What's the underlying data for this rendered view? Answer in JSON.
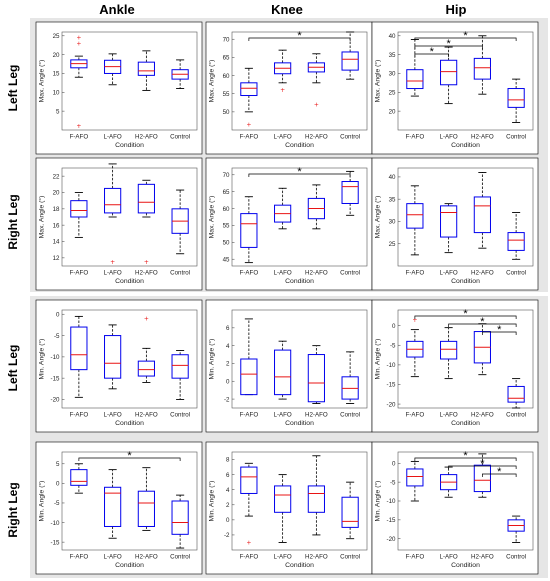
{
  "column_titles": [
    "Ankle",
    "Knee",
    "Hip"
  ],
  "row_titles": [
    "Left Leg",
    "Right Leg",
    "Left Leg",
    "Right Leg"
  ],
  "colors": {
    "box": "#0000ee",
    "median": "#e81414",
    "whisker": "#000000",
    "outlier": "#e81414",
    "section_background": "#e6e6e6"
  },
  "chart_data": [
    {
      "type": "box",
      "id": "max-left-ankle",
      "title": "",
      "xlabel": "Condition",
      "ylabel": "Max. Angle (°)",
      "categories": [
        "F-AFO",
        "L-AFO",
        "H2-AFO",
        "Control"
      ],
      "ylim": [
        0,
        26
      ],
      "yticks": [
        5,
        10,
        15,
        20,
        25
      ],
      "boxes": [
        {
          "min": 14,
          "q1": 16.5,
          "median": 17.6,
          "q3": 18.6,
          "max": 19.6,
          "outliers": [
            24.5,
            23,
            1
          ]
        },
        {
          "min": 12,
          "q1": 15,
          "median": 16.8,
          "q3": 18.5,
          "max": 20.2,
          "outliers": []
        },
        {
          "min": 10.5,
          "q1": 14.5,
          "median": 15.7,
          "q3": 18,
          "max": 21,
          "outliers": []
        },
        {
          "min": 11,
          "q1": 13.5,
          "median": 14.8,
          "q3": 16,
          "max": 18.6,
          "outliers": []
        }
      ],
      "significance": []
    },
    {
      "type": "box",
      "id": "max-left-knee",
      "title": "",
      "xlabel": "Condition",
      "ylabel": "Max. Angle (°)",
      "categories": [
        "F-AFO",
        "L-AFO",
        "H2-AFO",
        "Control"
      ],
      "ylim": [
        45,
        72
      ],
      "yticks": [
        50,
        55,
        60,
        65,
        70
      ],
      "boxes": [
        {
          "min": 50,
          "q1": 54.5,
          "median": 56.5,
          "q3": 58,
          "max": 62,
          "outliers": [
            46.5
          ]
        },
        {
          "min": 58,
          "q1": 60.5,
          "median": 62,
          "q3": 63.5,
          "max": 67,
          "outliers": [
            56
          ]
        },
        {
          "min": 58,
          "q1": 61,
          "median": 62.3,
          "q3": 63.5,
          "max": 66,
          "outliers": [
            52
          ]
        },
        {
          "min": 59,
          "q1": 61.5,
          "median": 64.5,
          "q3": 66.5,
          "max": 72,
          "outliers": []
        }
      ],
      "significance": [
        {
          "from": 0,
          "to": 3,
          "label": "*"
        }
      ]
    },
    {
      "type": "box",
      "id": "max-left-hip",
      "title": "",
      "xlabel": "Condition",
      "ylabel": "Max. Angle (°)",
      "categories": [
        "F-AFO",
        "L-AFO",
        "H2-AFO",
        "Control"
      ],
      "ylim": [
        15,
        41
      ],
      "yticks": [
        20,
        25,
        30,
        35,
        40
      ],
      "boxes": [
        {
          "min": 24,
          "q1": 26,
          "median": 28,
          "q3": 31,
          "max": 39,
          "outliers": []
        },
        {
          "min": 22,
          "q1": 27,
          "median": 30.5,
          "q3": 33.5,
          "max": 37,
          "outliers": []
        },
        {
          "min": 24.5,
          "q1": 28.5,
          "median": 31.5,
          "q3": 34,
          "max": 40,
          "outliers": []
        },
        {
          "min": 17,
          "q1": 21,
          "median": 23,
          "q3": 26,
          "max": 28.5,
          "outliers": []
        }
      ],
      "significance": [
        {
          "from": 0,
          "to": 3,
          "label": "*"
        },
        {
          "from": 0,
          "to": 2,
          "label": "*"
        },
        {
          "from": 0,
          "to": 1,
          "label": "*"
        }
      ]
    },
    {
      "type": "box",
      "id": "max-right-ankle",
      "title": "",
      "xlabel": "Condition",
      "ylabel": "Max. Angle (°)",
      "categories": [
        "F-AFO",
        "L-AFO",
        "H2-AFO",
        "Control"
      ],
      "ylim": [
        11,
        23
      ],
      "yticks": [
        12,
        14,
        16,
        18,
        20,
        22
      ],
      "boxes": [
        {
          "min": 14.5,
          "q1": 17,
          "median": 17.8,
          "q3": 19,
          "max": 20,
          "outliers": []
        },
        {
          "min": 17,
          "q1": 17.5,
          "median": 18.5,
          "q3": 20.5,
          "max": 23.5,
          "outliers": [
            11.5
          ]
        },
        {
          "min": 17,
          "q1": 17.5,
          "median": 18.8,
          "q3": 21,
          "max": 21.5,
          "outliers": [
            11.5
          ]
        },
        {
          "min": 12.5,
          "q1": 15,
          "median": 16.5,
          "q3": 18,
          "max": 20.3,
          "outliers": []
        }
      ],
      "significance": []
    },
    {
      "type": "box",
      "id": "max-right-knee",
      "title": "",
      "xlabel": "Condition",
      "ylabel": "Max. Angle (°)",
      "categories": [
        "F-AFO",
        "L-AFO",
        "H2-AFO",
        "Control"
      ],
      "ylim": [
        43,
        72
      ],
      "yticks": [
        45,
        50,
        55,
        60,
        65,
        70
      ],
      "boxes": [
        {
          "min": 44,
          "q1": 48.5,
          "median": 55.5,
          "q3": 58.5,
          "max": 63.5,
          "outliers": []
        },
        {
          "min": 54,
          "q1": 56,
          "median": 58.5,
          "q3": 61,
          "max": 66,
          "outliers": []
        },
        {
          "min": 54,
          "q1": 57,
          "median": 60,
          "q3": 63,
          "max": 67,
          "outliers": []
        },
        {
          "min": 58,
          "q1": 61.5,
          "median": 66.5,
          "q3": 68,
          "max": 71,
          "outliers": []
        }
      ],
      "significance": [
        {
          "from": 0,
          "to": 3,
          "label": "*"
        }
      ]
    },
    {
      "type": "box",
      "id": "max-right-hip",
      "title": "",
      "xlabel": "Condition",
      "ylabel": "Max. Angle (°)",
      "categories": [
        "F-AFO",
        "L-AFO",
        "H2-AFO",
        "Control"
      ],
      "ylim": [
        20,
        42
      ],
      "yticks": [
        25,
        30,
        35,
        40
      ],
      "boxes": [
        {
          "min": 22.5,
          "q1": 28.5,
          "median": 31.5,
          "q3": 34,
          "max": 38,
          "outliers": []
        },
        {
          "min": 23,
          "q1": 26.5,
          "median": 32,
          "q3": 33.5,
          "max": 34,
          "outliers": []
        },
        {
          "min": 24,
          "q1": 27.5,
          "median": 33.5,
          "q3": 35.5,
          "max": 41,
          "outliers": []
        },
        {
          "min": 21.5,
          "q1": 23.5,
          "median": 25.8,
          "q3": 27.5,
          "max": 32,
          "outliers": []
        }
      ],
      "significance": []
    },
    {
      "type": "box",
      "id": "min-left-ankle",
      "title": "",
      "xlabel": "Condition",
      "ylabel": "Min. Angle (°)",
      "categories": [
        "F-AFO",
        "L-AFO",
        "H2-AFO",
        "Control"
      ],
      "ylim": [
        -22,
        1
      ],
      "yticks": [
        -20,
        -15,
        -10,
        -5,
        0
      ],
      "boxes": [
        {
          "min": -19.5,
          "q1": -13,
          "median": -9.5,
          "q3": -3,
          "max": -0.5,
          "outliers": []
        },
        {
          "min": -17.5,
          "q1": -15,
          "median": -11.5,
          "q3": -5,
          "max": -2.5,
          "outliers": []
        },
        {
          "min": -16,
          "q1": -14.5,
          "median": -13,
          "q3": -11,
          "max": -8,
          "outliers": [
            -1
          ]
        },
        {
          "min": -20,
          "q1": -15,
          "median": -12,
          "q3": -9.5,
          "max": -8.5,
          "outliers": []
        }
      ],
      "significance": []
    },
    {
      "type": "box",
      "id": "min-left-knee",
      "title": "",
      "xlabel": "Condition",
      "ylabel": "Min. Angle (°)",
      "categories": [
        "F-AFO",
        "L-AFO",
        "H2-AFO",
        "Control"
      ],
      "ylim": [
        -3,
        8
      ],
      "yticks": [
        -2,
        0,
        2,
        4,
        6
      ],
      "boxes": [
        {
          "min": -1.5,
          "q1": -1.5,
          "median": 0.8,
          "q3": 2.5,
          "max": 7,
          "outliers": []
        },
        {
          "min": -2,
          "q1": -1.5,
          "median": 0.5,
          "q3": 3.5,
          "max": 4.5,
          "outliers": []
        },
        {
          "min": -2.5,
          "q1": -2.3,
          "median": -0.2,
          "q3": 3,
          "max": 4,
          "outliers": []
        },
        {
          "min": -2.5,
          "q1": -2,
          "median": -0.8,
          "q3": 0.5,
          "max": 3.3,
          "outliers": []
        }
      ],
      "significance": []
    },
    {
      "type": "box",
      "id": "min-left-hip",
      "title": "",
      "xlabel": "Condition",
      "ylabel": "Min. Angle (°)",
      "categories": [
        "F-AFO",
        "L-AFO",
        "H2-AFO",
        "Control"
      ],
      "ylim": [
        -21,
        4
      ],
      "yticks": [
        -20,
        -15,
        -10,
        -5,
        0
      ],
      "boxes": [
        {
          "min": -13,
          "q1": -8,
          "median": -6,
          "q3": -4,
          "max": -1,
          "outliers": [
            1.5
          ]
        },
        {
          "min": -13.5,
          "q1": -8.5,
          "median": -6,
          "q3": -4,
          "max": -0.5,
          "outliers": []
        },
        {
          "min": -12.5,
          "q1": -9.5,
          "median": -5.5,
          "q3": -1.5,
          "max": 0.5,
          "outliers": []
        },
        {
          "min": -21,
          "q1": -19.5,
          "median": -18.5,
          "q3": -15.5,
          "max": -13.5,
          "outliers": []
        }
      ],
      "significance": [
        {
          "from": 0,
          "to": 3,
          "label": "*"
        },
        {
          "from": 1,
          "to": 3,
          "label": "*"
        },
        {
          "from": 2,
          "to": 3,
          "label": "*"
        }
      ]
    },
    {
      "type": "box",
      "id": "min-right-ankle",
      "title": "",
      "xlabel": "Condition",
      "ylabel": "Min. Angle (°)",
      "categories": [
        "F-AFO",
        "L-AFO",
        "H2-AFO",
        "Control"
      ],
      "ylim": [
        -17,
        8
      ],
      "yticks": [
        -15,
        -10,
        -5,
        0,
        5
      ],
      "boxes": [
        {
          "min": -2.5,
          "q1": -0.5,
          "median": 0.5,
          "q3": 3.5,
          "max": 5,
          "outliers": []
        },
        {
          "min": -14,
          "q1": -11,
          "median": -2.5,
          "q3": -1,
          "max": 3.5,
          "outliers": []
        },
        {
          "min": -12,
          "q1": -11,
          "median": -5,
          "q3": -2,
          "max": 4,
          "outliers": []
        },
        {
          "min": -16.5,
          "q1": -13,
          "median": -10,
          "q3": -4.5,
          "max": -3,
          "outliers": []
        }
      ],
      "significance": [
        {
          "from": 0,
          "to": 3,
          "label": "*"
        }
      ]
    },
    {
      "type": "box",
      "id": "min-right-knee",
      "title": "",
      "xlabel": "Condition",
      "ylabel": "Min. Angle (°)",
      "categories": [
        "F-AFO",
        "L-AFO",
        "H2-AFO",
        "Control"
      ],
      "ylim": [
        -4,
        9
      ],
      "yticks": [
        -2,
        0,
        2,
        4,
        6,
        8
      ],
      "boxes": [
        {
          "min": 0.5,
          "q1": 3.5,
          "median": 5.7,
          "q3": 7,
          "max": 7.5,
          "outliers": [
            -3
          ]
        },
        {
          "min": -3,
          "q1": 1,
          "median": 3.3,
          "q3": 4.5,
          "max": 6,
          "outliers": []
        },
        {
          "min": -2,
          "q1": 1,
          "median": 3.5,
          "q3": 4.5,
          "max": 8.5,
          "outliers": []
        },
        {
          "min": -2.5,
          "q1": -1,
          "median": -0.2,
          "q3": 3,
          "max": 5,
          "outliers": []
        }
      ],
      "significance": []
    },
    {
      "type": "box",
      "id": "min-right-hip",
      "title": "",
      "xlabel": "Condition",
      "ylabel": "Min. Angle (°)",
      "categories": [
        "F-AFO",
        "L-AFO",
        "H2-AFO",
        "Control"
      ],
      "ylim": [
        -23,
        3
      ],
      "yticks": [
        -20,
        -15,
        -10,
        -5,
        0
      ],
      "boxes": [
        {
          "min": -10,
          "q1": -6,
          "median": -3.5,
          "q3": -1.5,
          "max": 0.5,
          "outliers": []
        },
        {
          "min": -9,
          "q1": -7,
          "median": -5,
          "q3": -3,
          "max": -1,
          "outliers": []
        },
        {
          "min": -9,
          "q1": -7.5,
          "median": -4.5,
          "q3": -0.5,
          "max": 2.5,
          "outliers": []
        },
        {
          "min": -21,
          "q1": -18,
          "median": -16.5,
          "q3": -15,
          "max": -14,
          "outliers": []
        }
      ],
      "significance": [
        {
          "from": 0,
          "to": 3,
          "label": "*"
        },
        {
          "from": 1,
          "to": 3,
          "label": "*"
        },
        {
          "from": 2,
          "to": 3,
          "label": "*"
        }
      ]
    }
  ]
}
